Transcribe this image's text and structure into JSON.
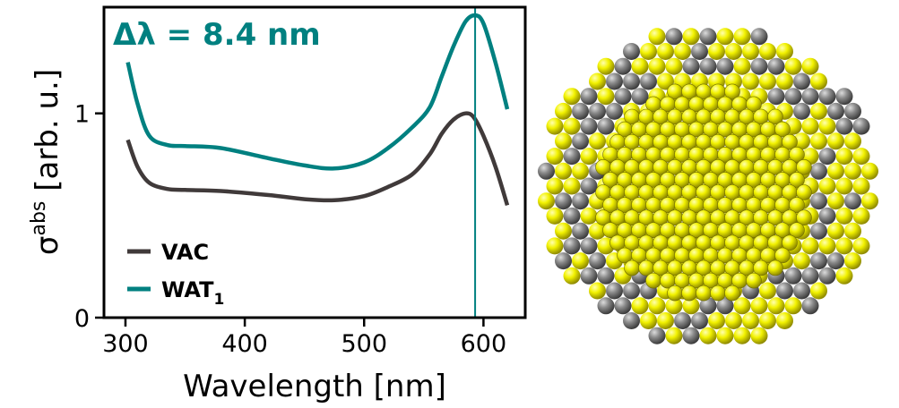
{
  "chart_data": {
    "type": "line",
    "xlabel": "Wavelength [nm]",
    "ylabel_base": "σ",
    "ylabel_sup": "abs",
    "ylabel_rest": " [arb. u.]",
    "xlim": [
      282,
      635
    ],
    "ylim": [
      0,
      1.52
    ],
    "xticks": [
      300,
      400,
      500,
      600
    ],
    "yticks": [
      0,
      1
    ],
    "xtick_labels": [
      "300",
      "400",
      "500",
      "600"
    ],
    "ytick_labels": [
      "0",
      "1"
    ],
    "grid": false,
    "legend_position": "bottom-left",
    "annotation": "Δλ = 8.4 nm",
    "annotation_color": "#008080",
    "vline": {
      "x": 593,
      "color": "#008080"
    },
    "series": [
      {
        "name": "VAC",
        "color": "#403a3a",
        "x": [
          302,
          310,
          320,
          335,
          350,
          380,
          420,
          450,
          475,
          500,
          520,
          540,
          555,
          565,
          575,
          585,
          592,
          600,
          610,
          620
        ],
        "y": [
          0.87,
          0.74,
          0.66,
          0.63,
          0.625,
          0.62,
          0.6,
          0.58,
          0.575,
          0.595,
          0.64,
          0.7,
          0.8,
          0.9,
          0.97,
          1.0,
          0.98,
          0.89,
          0.74,
          0.55
        ]
      },
      {
        "name": "WAT",
        "name_sub": "1",
        "color": "#008080",
        "x": [
          302,
          310,
          320,
          335,
          350,
          380,
          420,
          450,
          475,
          500,
          520,
          540,
          555,
          565,
          575,
          585,
          593,
          600,
          610,
          620
        ],
        "y": [
          1.25,
          1.05,
          0.89,
          0.845,
          0.84,
          0.83,
          0.78,
          0.745,
          0.73,
          0.76,
          0.83,
          0.93,
          1.03,
          1.18,
          1.33,
          1.45,
          1.48,
          1.44,
          1.25,
          1.02
        ]
      }
    ]
  },
  "image": {
    "description_free": true,
    "sphere_colors": {
      "gold": "#e6e600",
      "silver": "#7c7c7c"
    }
  }
}
